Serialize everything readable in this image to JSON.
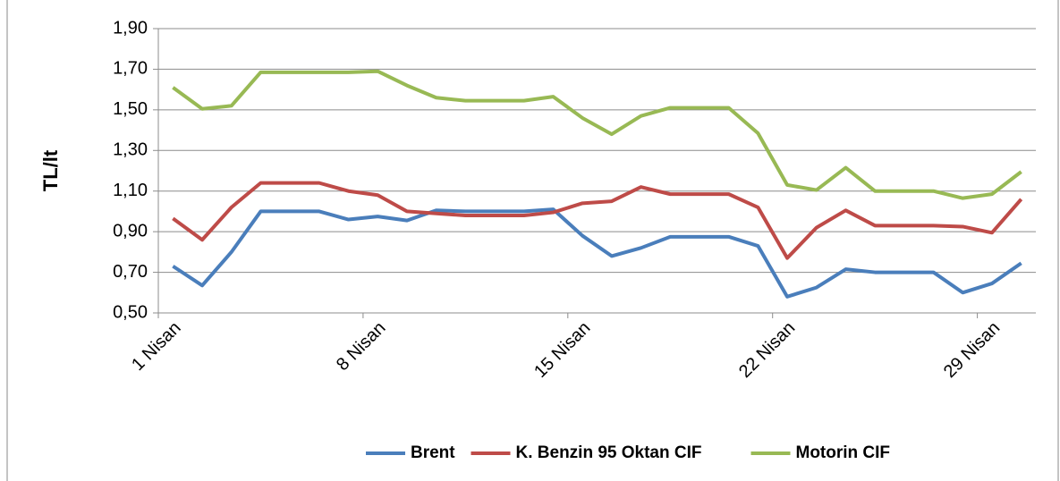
{
  "chart_data": {
    "type": "line",
    "y_label": "TL/lt",
    "categories": [
      "1 Nisan",
      null,
      null,
      null,
      null,
      null,
      null,
      "8 Nisan",
      null,
      null,
      null,
      null,
      null,
      null,
      "15 Nisan",
      null,
      null,
      null,
      null,
      null,
      null,
      "22 Nisan",
      null,
      null,
      null,
      null,
      null,
      null,
      "29 Nisan",
      null
    ],
    "series": [
      {
        "name": "Brent",
        "color": "#4a7ebb",
        "values": [
          0.73,
          0.635,
          0.8,
          1.0,
          1.0,
          1.0,
          0.96,
          0.975,
          0.955,
          1.005,
          1.0,
          1.0,
          1.0,
          1.01,
          0.88,
          0.78,
          0.82,
          0.875,
          0.875,
          0.875,
          0.83,
          0.58,
          0.625,
          0.715,
          0.7,
          0.7,
          0.7,
          0.6,
          0.645,
          0.745
        ]
      },
      {
        "name": "K. Benzin 95 Oktan CIF",
        "color": "#be4b48",
        "values": [
          0.965,
          0.86,
          1.02,
          1.14,
          1.14,
          1.14,
          1.1,
          1.08,
          1.0,
          0.99,
          0.98,
          0.98,
          0.98,
          0.995,
          1.04,
          1.05,
          1.12,
          1.085,
          1.085,
          1.085,
          1.02,
          0.77,
          0.92,
          1.005,
          0.93,
          0.93,
          0.93,
          0.925,
          0.895,
          1.06
        ]
      },
      {
        "name": "Motorin CIF",
        "color": "#98b954",
        "values": [
          1.61,
          1.505,
          1.52,
          1.685,
          1.685,
          1.685,
          1.685,
          1.69,
          1.62,
          1.56,
          1.545,
          1.545,
          1.545,
          1.565,
          1.46,
          1.38,
          1.47,
          1.51,
          1.51,
          1.51,
          1.385,
          1.13,
          1.105,
          1.215,
          1.1,
          1.1,
          1.1,
          1.065,
          1.085,
          1.195
        ]
      }
    ],
    "ylim": [
      0.5,
      1.9
    ],
    "yticks": [
      {
        "value": 0.5,
        "label": "0,50"
      },
      {
        "value": 0.7,
        "label": "0,70"
      },
      {
        "value": 0.9,
        "label": "0,90"
      },
      {
        "value": 1.1,
        "label": "1,10"
      },
      {
        "value": 1.3,
        "label": "1,30"
      },
      {
        "value": 1.5,
        "label": "1,50"
      },
      {
        "value": 1.7,
        "label": "1,70"
      },
      {
        "value": 1.9,
        "label": "1,90"
      }
    ],
    "grid": true,
    "legend": "bottom"
  }
}
